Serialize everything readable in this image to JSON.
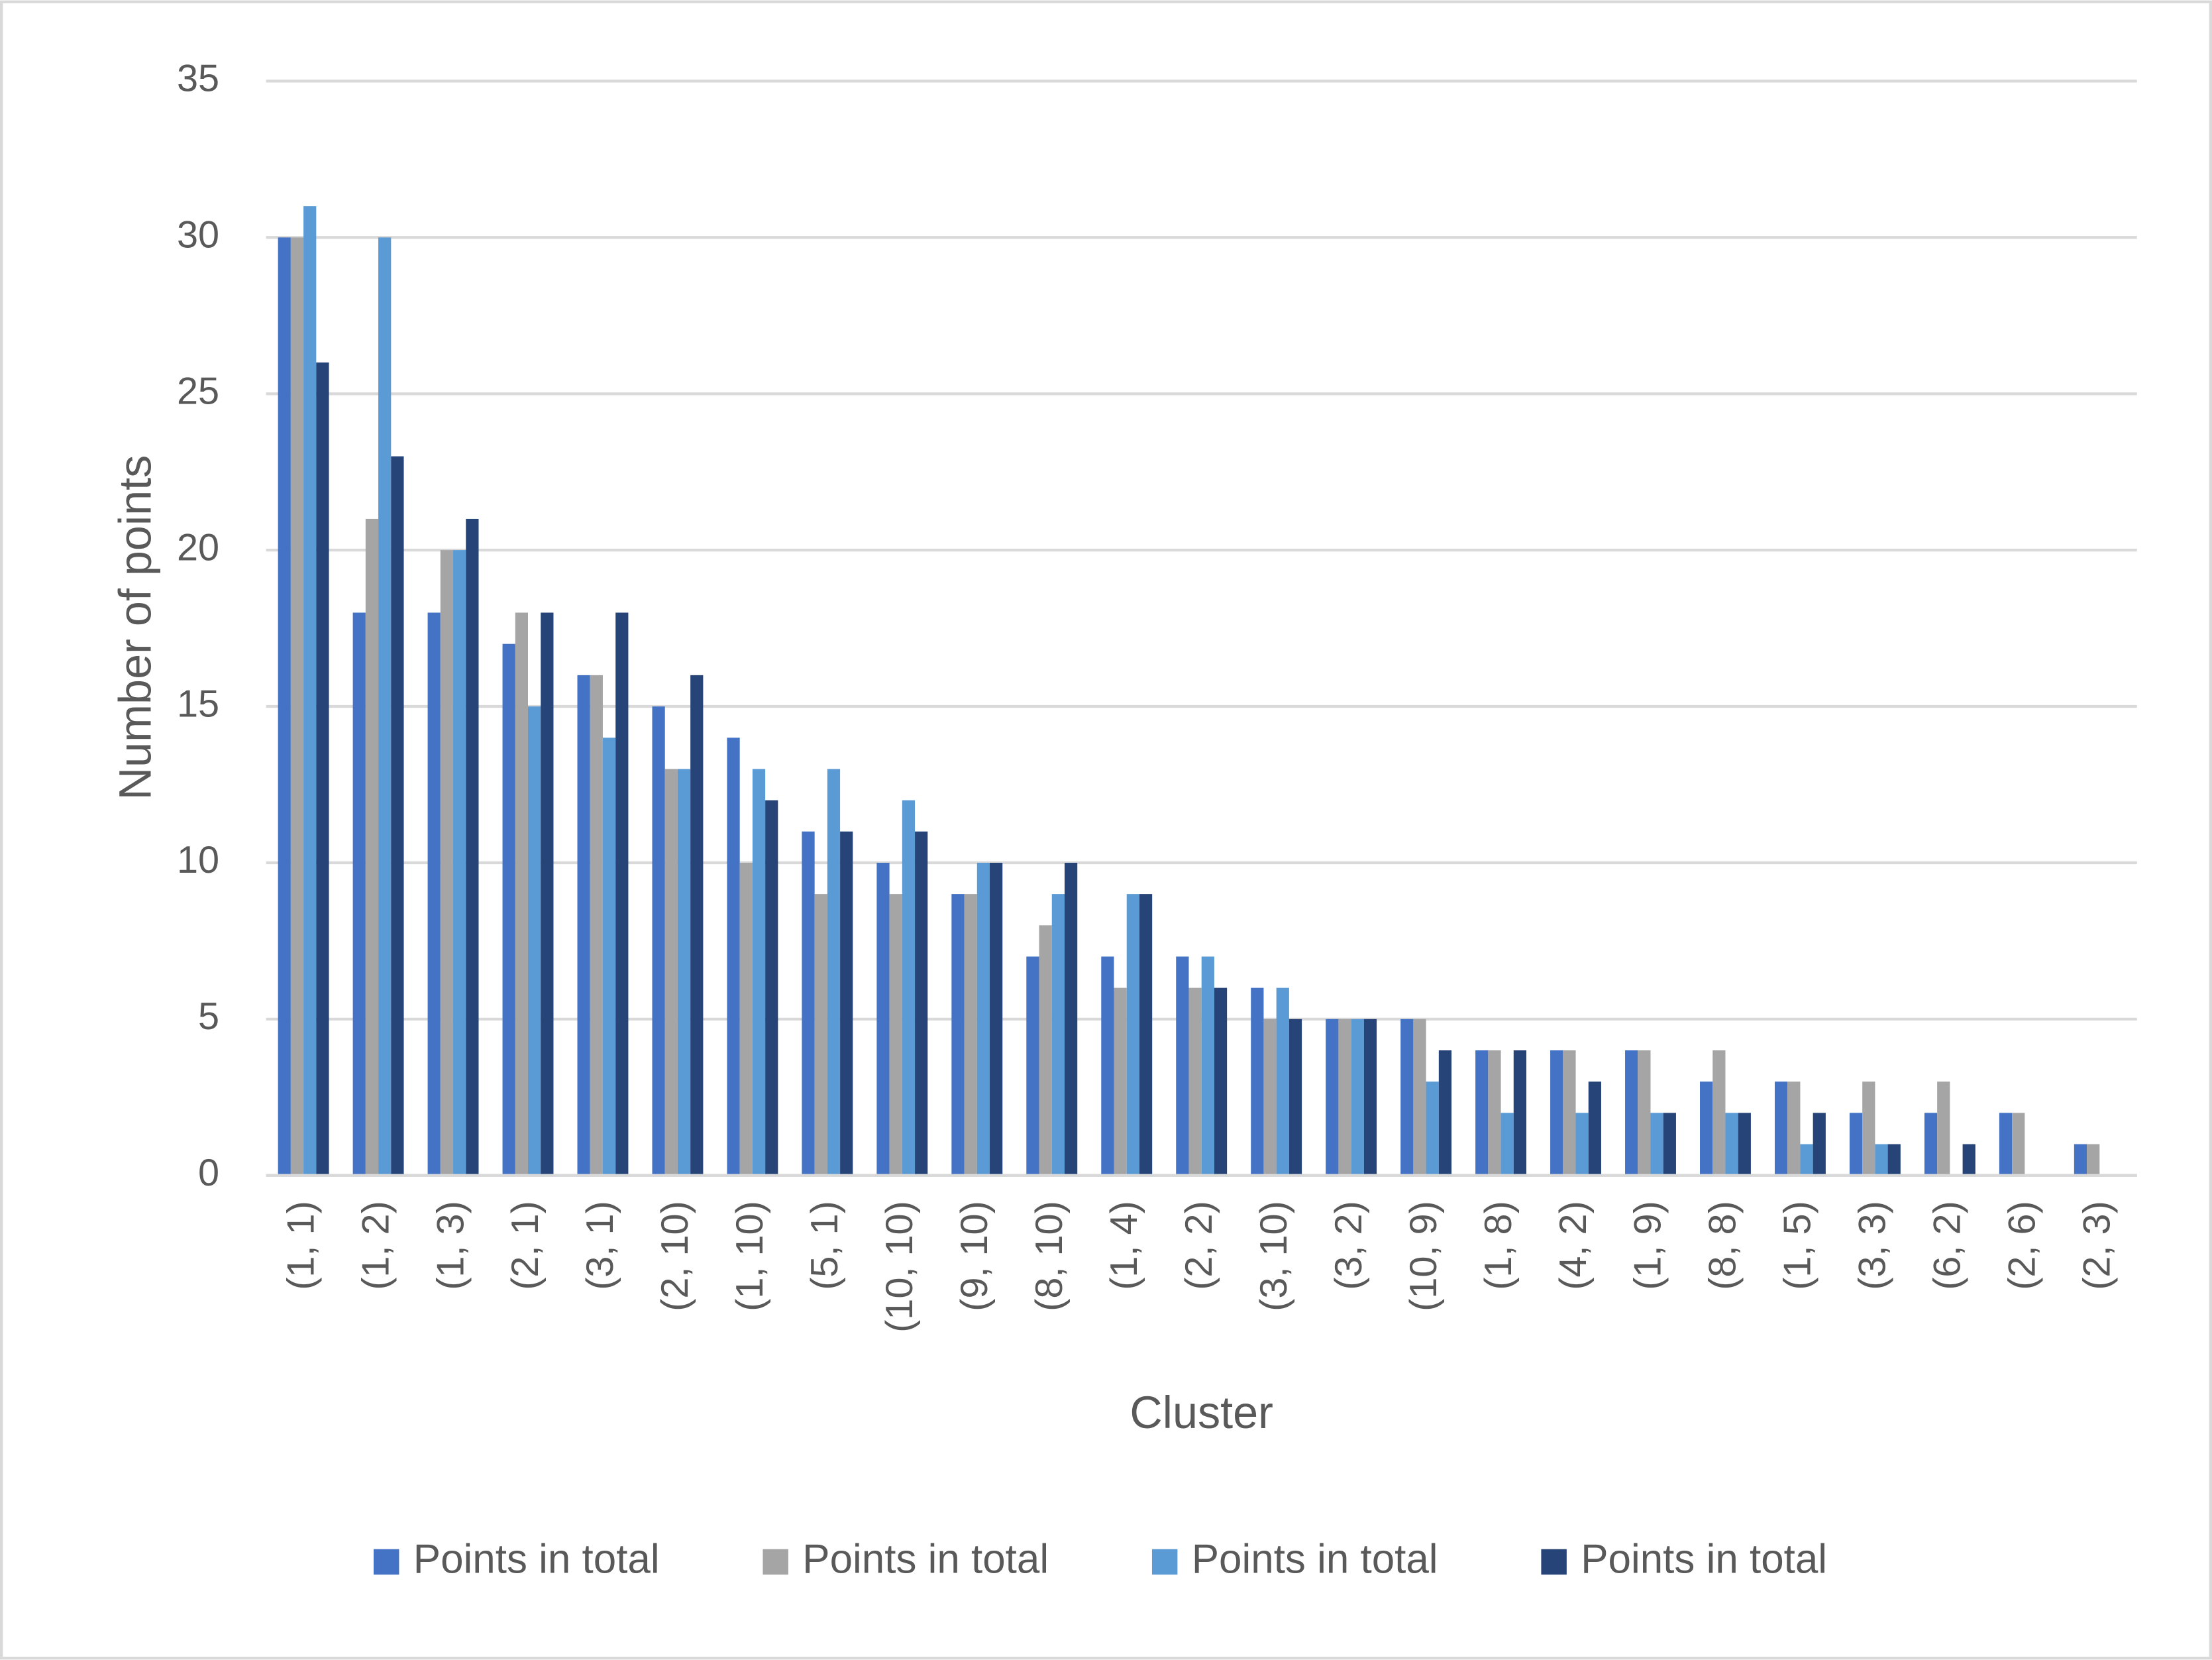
{
  "chart_data": {
    "type": "bar",
    "x_label": "Cluster",
    "y_label": "Number of points",
    "categories": [
      "(1, 1)",
      "(1, 2)",
      "(1, 3)",
      "(2, 1)",
      "(3, 1)",
      "(2, 10)",
      "(1, 10)",
      "(5, 1)",
      "(10, 10)",
      "(9, 10)",
      "(8, 10)",
      "(1, 4)",
      "(2, 2)",
      "(3, 10)",
      "(3, 2)",
      "(10, 9)",
      "(1, 8)",
      "(4, 2)",
      "(1, 9)",
      "(8, 8)",
      "(1, 5)",
      "(3, 3)",
      "(6, 2)",
      "(2, 6)",
      "(2, 3)"
    ],
    "series": [
      {
        "name": "Points in total",
        "color": "#4472c4",
        "values": [
          30,
          18,
          18,
          17,
          16,
          15,
          14,
          11,
          10,
          9,
          7,
          7,
          7,
          6,
          5,
          5,
          4,
          4,
          4,
          3,
          3,
          2,
          2,
          2,
          1
        ]
      },
      {
        "name": "Points in total",
        "color": "#a5a5a5",
        "values": [
          30,
          21,
          20,
          18,
          16,
          13,
          10,
          9,
          9,
          9,
          8,
          6,
          6,
          5,
          5,
          5,
          4,
          4,
          4,
          4,
          3,
          3,
          3,
          2,
          1
        ]
      },
      {
        "name": "Points in total",
        "color": "#5b9bd5",
        "values": [
          31,
          30,
          20,
          15,
          14,
          13,
          13,
          13,
          12,
          10,
          9,
          9,
          7,
          6,
          5,
          3,
          2,
          2,
          2,
          2,
          1,
          1,
          null,
          null,
          null
        ]
      },
      {
        "name": "Points in total",
        "color": "#264478",
        "values": [
          26,
          23,
          21,
          18,
          18,
          16,
          12,
          11,
          11,
          10,
          10,
          9,
          6,
          5,
          5,
          4,
          4,
          3,
          2,
          2,
          2,
          1,
          1,
          null,
          null
        ]
      }
    ],
    "ylim": [
      0,
      35
    ],
    "yticks": [
      0,
      5,
      10,
      15,
      20,
      25,
      30,
      35
    ],
    "grid": true,
    "legend": "bottom"
  }
}
